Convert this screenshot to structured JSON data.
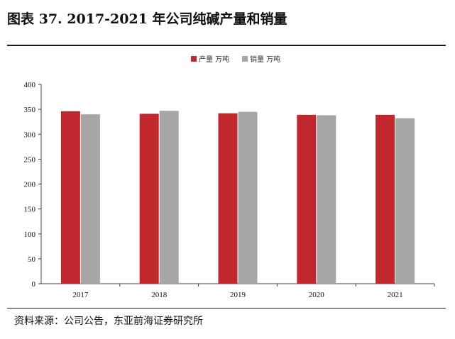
{
  "figure_title": "图表 37. 2017-2021 年公司纯碱产量和销量",
  "source_note": "资料来源：公司公告，东亚前海证券研究所",
  "colors": {
    "production": "#C0282D",
    "sales": "#A6A6A6",
    "axis": "#404040"
  },
  "chart_data": {
    "type": "bar",
    "categories": [
      "2017",
      "2018",
      "2019",
      "2020",
      "2021"
    ],
    "series": [
      {
        "name": "产量 万吨",
        "values": [
          346,
          341,
          342,
          339,
          339
        ]
      },
      {
        "name": "销量 万吨",
        "values": [
          340,
          347,
          345,
          338,
          332
        ]
      }
    ],
    "ylim": [
      0,
      400
    ],
    "yticks": [
      0,
      50,
      100,
      150,
      200,
      250,
      300,
      350,
      400
    ],
    "grid": false,
    "legend": "top-center"
  }
}
